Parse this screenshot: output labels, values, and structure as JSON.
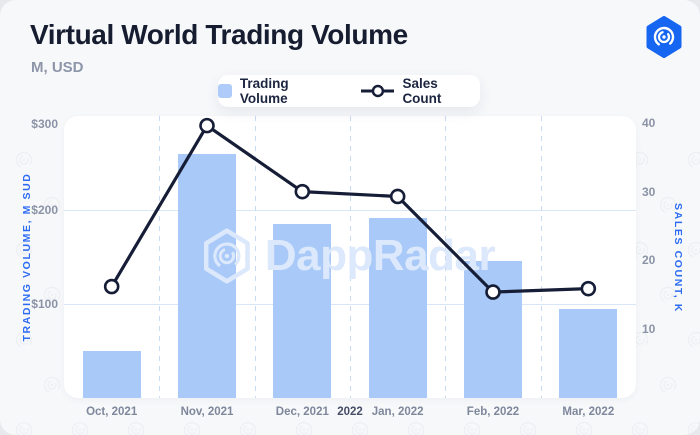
{
  "header": {
    "title": "Virtual World Trading Volume",
    "subtitle": "M, USD"
  },
  "brand": {
    "logo_icon": "dappradar-hexagon-fingerprint-icon",
    "watermark_text": "DappRadar"
  },
  "legend": {
    "items": [
      {
        "label": "Trading Volume",
        "marker": "bar-swatch",
        "color": "#aecbfa"
      },
      {
        "label": "Sales Count",
        "marker": "line-with-circle",
        "color": "#161d36"
      }
    ]
  },
  "chart_data": {
    "type": "bar",
    "subtype": "dual-axis combo (bar + line)",
    "title": "Virtual World Trading Volume",
    "categories": [
      "Oct, 2021",
      "Nov, 2021",
      "Dec, 2021",
      "Jan, 2022",
      "Feb, 2022",
      "Mar, 2022"
    ],
    "series": [
      {
        "name": "Trading Volume",
        "type": "bar",
        "axis": "left",
        "values": [
          50,
          260,
          185,
          192,
          146,
          95
        ]
      },
      {
        "name": "Sales Count",
        "type": "line",
        "axis": "right",
        "values": [
          16.2,
          39.6,
          30,
          29.3,
          15.4,
          15.9
        ]
      }
    ],
    "left_axis": {
      "label": "TRADING VOLUME, M SUD",
      "ticks": [
        {
          "label": "$300",
          "value": 300
        },
        {
          "label": "$200",
          "value": 200
        },
        {
          "label": "$100",
          "value": 100
        }
      ],
      "range": [
        0,
        300
      ]
    },
    "right_axis": {
      "label": "SALES COUNT, K",
      "ticks": [
        {
          "label": "40",
          "value": 40
        },
        {
          "label": "30",
          "value": 30
        },
        {
          "label": "20",
          "value": 20
        },
        {
          "label": "10",
          "value": 10
        }
      ],
      "range": [
        0,
        41
      ]
    },
    "year_divider": {
      "label": "2022",
      "after_category_index": 2
    },
    "grid": {
      "horizontal": "solid light-blue",
      "vertical": "dashed light-blue between categories"
    },
    "legend_position": "top-center"
  },
  "colors": {
    "page_bg": "#e7e9ec",
    "card_bg": "#f7f8fa",
    "plot_bg": "#ffffff",
    "bar": "#a9c9f8",
    "line": "#161d36",
    "marker_fill": "#ffffff",
    "grid_solid": "#d9e6f8",
    "grid_dashed": "#c9daf4",
    "tick_text": "#8b93a6",
    "axis_title": "#2d6bf3",
    "x_label": "#7e879b",
    "year_label": "#454e66",
    "title_text": "#161d30",
    "subtitle_text": "#8d95a9",
    "logo_blue": "#1666f2",
    "watermark": "#dce8fb"
  }
}
